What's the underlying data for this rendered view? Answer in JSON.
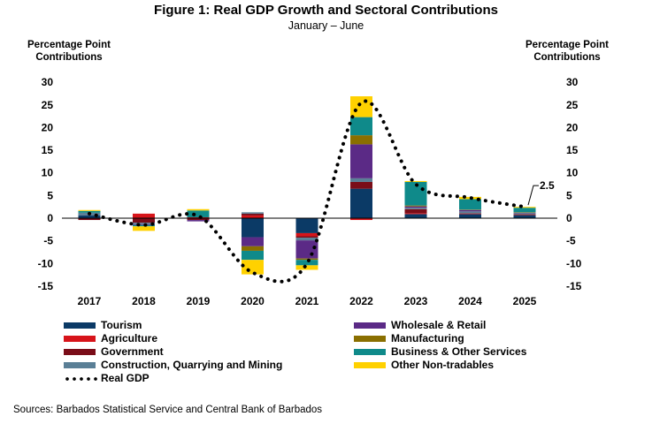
{
  "title": "Figure 1: Real GDP Growth and Sectoral Contributions",
  "subtitle": "January – June",
  "source": "Sources: Barbados Statistical Service and Central Bank of Barbados",
  "chart_data": {
    "type": "bar",
    "stacked": true,
    "ylabel_left": "Percentage Point Contributions",
    "ylabel_right": "Percentage Point Contributions",
    "ylim": [
      -15,
      30
    ],
    "yticks": [
      30,
      25,
      20,
      15,
      10,
      5,
      0,
      -5,
      -10,
      -15
    ],
    "categories": [
      "2017",
      "2018",
      "2019",
      "2020",
      "2021",
      "2022",
      "2023",
      "2024",
      "2025"
    ],
    "series": [
      {
        "name": "Tourism",
        "color": "#0b3a66",
        "values": [
          0.6,
          0.0,
          0.0,
          -4.2,
          -3.3,
          6.5,
          0.9,
          0.9,
          0.7
        ]
      },
      {
        "name": "Agriculture",
        "color": "#d7141a",
        "values": [
          0.0,
          1.0,
          0.2,
          0.6,
          -0.7,
          -0.4,
          0.2,
          0.1,
          0.1
        ]
      },
      {
        "name": "Government",
        "color": "#7a0d18",
        "values": [
          -0.4,
          -1.0,
          -0.4,
          0.4,
          -0.3,
          1.5,
          0.9,
          0.1,
          0.1
        ]
      },
      {
        "name": "Construction, Quarrying and Mining",
        "color": "#5a7f96",
        "values": [
          0.6,
          -0.3,
          0.0,
          0.3,
          -0.6,
          0.8,
          0.3,
          0.4,
          0.2
        ]
      },
      {
        "name": "Wholesale & Retail",
        "color": "#5b2a86",
        "values": [
          0.0,
          -0.2,
          -0.3,
          -2.0,
          -4.0,
          7.5,
          0.3,
          0.3,
          0.1
        ]
      },
      {
        "name": "Manufacturing",
        "color": "#8a6f00",
        "values": [
          0.0,
          0.0,
          0.0,
          -1.0,
          -0.3,
          2.0,
          0.2,
          0.1,
          0.1
        ]
      },
      {
        "name": "Business & Other Services",
        "color": "#0f8a8a",
        "values": [
          0.4,
          -0.3,
          1.5,
          -2.0,
          -1.2,
          4.0,
          5.2,
          2.3,
          1.0
        ]
      },
      {
        "name": "Other Non-tradables",
        "color": "#ffd100",
        "values": [
          0.2,
          -1.0,
          0.3,
          -3.2,
          -1.0,
          4.6,
          0.2,
          0.5,
          0.2
        ]
      }
    ],
    "line": {
      "name": "Real GDP",
      "style": "dotted",
      "values": [
        1.0,
        -1.5,
        0.5,
        -12.0,
        -10.0,
        25.5,
        7.5,
        4.5,
        2.5
      ]
    },
    "annotation": {
      "label": "2.5",
      "category": "2025",
      "value": 2.5
    },
    "legend_position": "bottom"
  }
}
